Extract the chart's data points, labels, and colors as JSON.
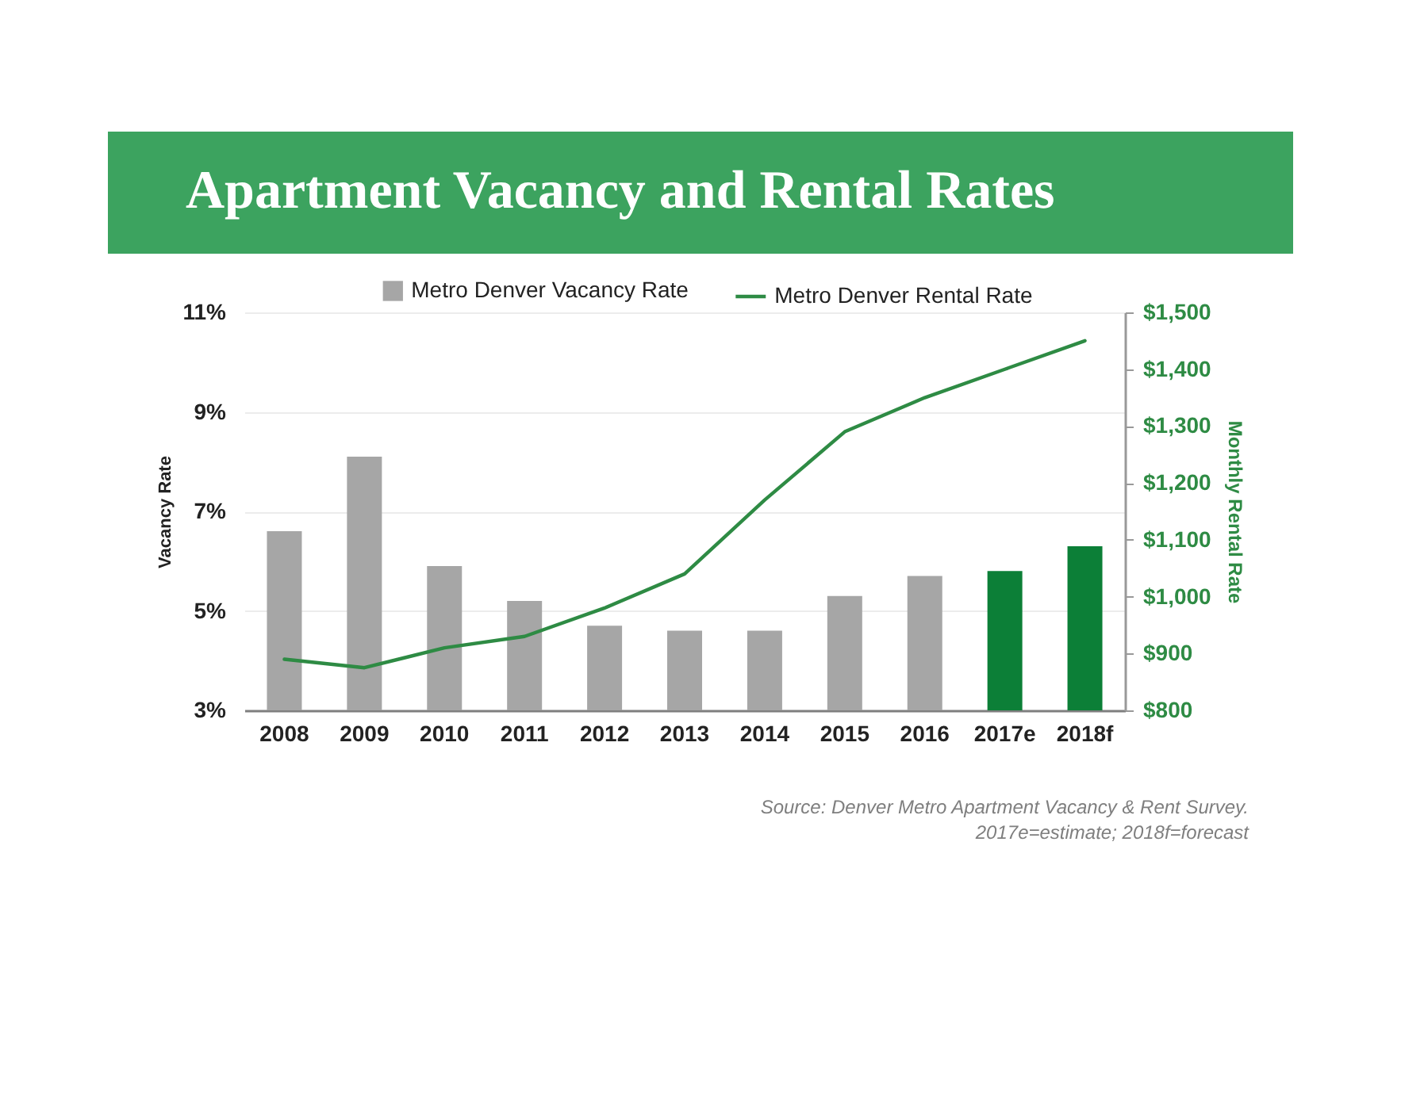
{
  "chart_data": {
    "type": "bar",
    "title": "Apartment Vacancy and Rental Rates",
    "ylabel": "Vacancy Rate",
    "y2label": "Monthly Rental Rate",
    "categories": [
      "2008",
      "2009",
      "2010",
      "2011",
      "2012",
      "2013",
      "2014",
      "2015",
      "2016",
      "2017e",
      "2018f"
    ],
    "series": [
      {
        "name": "Metro Denver Vacancy Rate",
        "color": "#a6a6a6",
        "colors": [
          "#a6a6a6",
          "#a6a6a6",
          "#a6a6a6",
          "#a6a6a6",
          "#a6a6a6",
          "#a6a6a6",
          "#a6a6a6",
          "#a6a6a6",
          "#a6a6a6",
          "#0c7f37",
          "#0c7f37"
        ],
        "values": [
          6.6,
          8.1,
          5.9,
          5.2,
          4.7,
          4.6,
          4.6,
          5.3,
          5.7,
          5.8,
          6.3
        ]
      },
      {
        "name": "Metro Denver Rental Rate",
        "type": "line",
        "axis": "y2",
        "color": "#2e8b44",
        "values": [
          890,
          875,
          910,
          930,
          980,
          1040,
          1170,
          1290,
          1350,
          1400,
          1450
        ]
      }
    ],
    "ylim": [
      3,
      11
    ],
    "yticks": [
      {
        "value": 3,
        "label": "3%"
      },
      {
        "value": 5,
        "label": "5%"
      },
      {
        "value": 7,
        "label": "7%"
      },
      {
        "value": 9,
        "label": "9%"
      },
      {
        "value": 11,
        "label": "11%"
      }
    ],
    "y2lim": [
      800,
      1500
    ],
    "y2ticks": [
      {
        "value": 800,
        "label": "$800"
      },
      {
        "value": 900,
        "label": "$900"
      },
      {
        "value": 1000,
        "label": "$1,000"
      },
      {
        "value": 1100,
        "label": "$1,100"
      },
      {
        "value": 1200,
        "label": "$1,200"
      },
      {
        "value": 1300,
        "label": "$1,300"
      },
      {
        "value": 1400,
        "label": "$1,400"
      },
      {
        "value": 1500,
        "label": "$1,500"
      }
    ],
    "grid": "y",
    "legend": "top",
    "annotations": [
      "Source: Denver Metro Apartment Vacancy & Rent Survey.",
      "2017e=estimate; 2018f=forecast"
    ]
  }
}
